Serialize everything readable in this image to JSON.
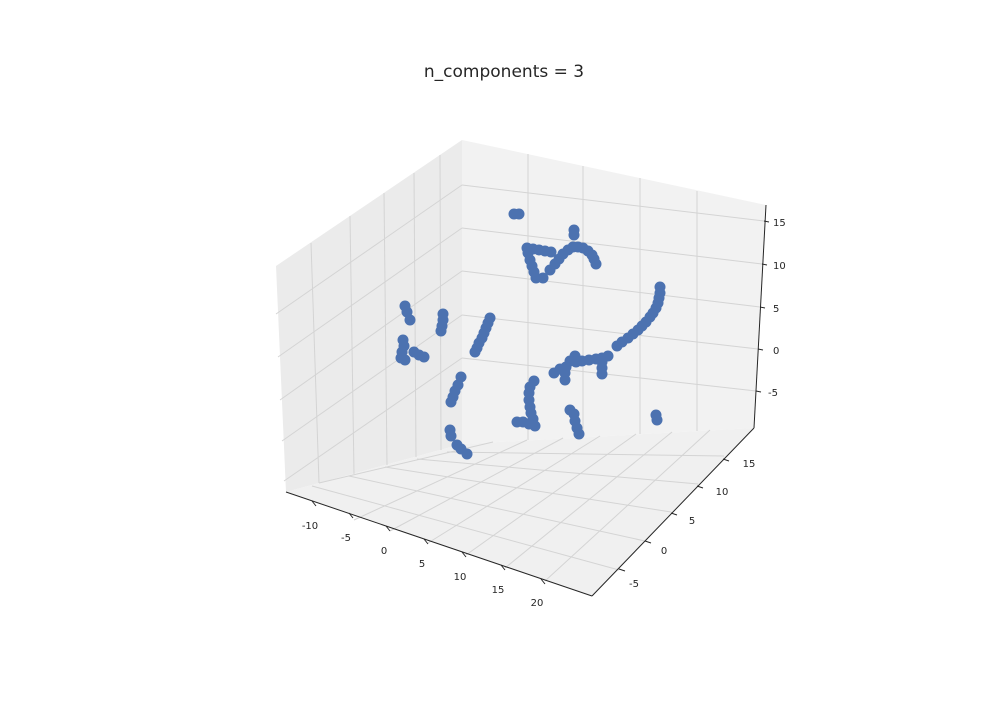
{
  "chart_data": {
    "type": "scatter",
    "projection": "3d",
    "title": "n_components = 3",
    "xlabel": "",
    "ylabel": "",
    "zlabel": "",
    "x_ticks": [
      "-10",
      "-5",
      "0",
      "5",
      "10",
      "15",
      "20"
    ],
    "y_ticks": [
      "-5",
      "0",
      "5",
      "10",
      "15"
    ],
    "z_ticks": [
      "-5",
      "0",
      "5",
      "10",
      "15"
    ],
    "grid": true,
    "marker_color": "#4c72b0",
    "panel_colors": {
      "left": "#ebebeb",
      "back": "#f2f2f2",
      "floor": "#f0f0f0"
    },
    "series": [
      {
        "points": [
          [
            514,
            214
          ],
          [
            519,
            214
          ]
        ]
      },
      {
        "points": [
          [
            574,
            230
          ],
          [
            574,
            235
          ]
        ]
      },
      {
        "points": [
          [
            527,
            248
          ],
          [
            533,
            249
          ],
          [
            539,
            250
          ],
          [
            545,
            251
          ],
          [
            551,
            252
          ],
          [
            528,
            253
          ],
          [
            530,
            260
          ],
          [
            532,
            266
          ],
          [
            534,
            272
          ],
          [
            536,
            278
          ],
          [
            543,
            278
          ]
        ]
      },
      {
        "points": [
          [
            550,
            270
          ],
          [
            555,
            264
          ],
          [
            559,
            259
          ],
          [
            563,
            254
          ],
          [
            568,
            250
          ],
          [
            573,
            247
          ],
          [
            578,
            247
          ],
          [
            583,
            248
          ],
          [
            588,
            251
          ],
          [
            592,
            255
          ],
          [
            594,
            259
          ],
          [
            596,
            264
          ]
        ]
      },
      {
        "points": [
          [
            660,
            287
          ],
          [
            660,
            293
          ],
          [
            659,
            298
          ],
          [
            658,
            303
          ],
          [
            656,
            308
          ],
          [
            653,
            313
          ],
          [
            650,
            317
          ],
          [
            646,
            322
          ],
          [
            642,
            326
          ],
          [
            638,
            330
          ],
          [
            633,
            334
          ],
          [
            628,
            338
          ],
          [
            622,
            342
          ],
          [
            617,
            346
          ]
        ]
      },
      {
        "points": [
          [
            405,
            306
          ],
          [
            407,
            312
          ],
          [
            410,
            320
          ]
        ]
      },
      {
        "points": [
          [
            443,
            314
          ],
          [
            443,
            320
          ],
          [
            442,
            326
          ],
          [
            441,
            331
          ]
        ]
      },
      {
        "points": [
          [
            490,
            318
          ],
          [
            488,
            323
          ],
          [
            486,
            328
          ],
          [
            484,
            333
          ],
          [
            482,
            338
          ],
          [
            479,
            343
          ],
          [
            477,
            348
          ],
          [
            475,
            352
          ]
        ]
      },
      {
        "points": [
          [
            403,
            340
          ],
          [
            404,
            346
          ],
          [
            402,
            352
          ],
          [
            401,
            358
          ],
          [
            405,
            360
          ],
          [
            414,
            352
          ],
          [
            419,
            355
          ],
          [
            424,
            357
          ]
        ]
      },
      {
        "points": [
          [
            575,
            356
          ],
          [
            570,
            361
          ],
          [
            566,
            367
          ],
          [
            565,
            373
          ],
          [
            565,
            380
          ],
          [
            576,
            362
          ],
          [
            582,
            361
          ],
          [
            589,
            360
          ],
          [
            596,
            359
          ],
          [
            602,
            358
          ],
          [
            608,
            356
          ],
          [
            560,
            369
          ],
          [
            554,
            373
          ],
          [
            602,
            362
          ],
          [
            602,
            368
          ],
          [
            602,
            374
          ]
        ]
      },
      {
        "points": [
          [
            461,
            377
          ],
          [
            458,
            385
          ],
          [
            455,
            391
          ],
          [
            453,
            397
          ],
          [
            451,
            402
          ]
        ]
      },
      {
        "points": [
          [
            534,
            381
          ],
          [
            530,
            387
          ],
          [
            529,
            393
          ],
          [
            529,
            400
          ],
          [
            530,
            407
          ],
          [
            531,
            413
          ],
          [
            533,
            419
          ],
          [
            535,
            426
          ],
          [
            529,
            424
          ],
          [
            523,
            422
          ],
          [
            517,
            422
          ]
        ]
      },
      {
        "points": [
          [
            570,
            410
          ],
          [
            574,
            414
          ],
          [
            575,
            421
          ],
          [
            577,
            428
          ],
          [
            579,
            434
          ]
        ]
      },
      {
        "points": [
          [
            656,
            415
          ],
          [
            657,
            420
          ]
        ]
      },
      {
        "points": [
          [
            450,
            430
          ],
          [
            451,
            436
          ],
          [
            457,
            445
          ],
          [
            461,
            449
          ],
          [
            467,
            454
          ]
        ]
      }
    ]
  }
}
